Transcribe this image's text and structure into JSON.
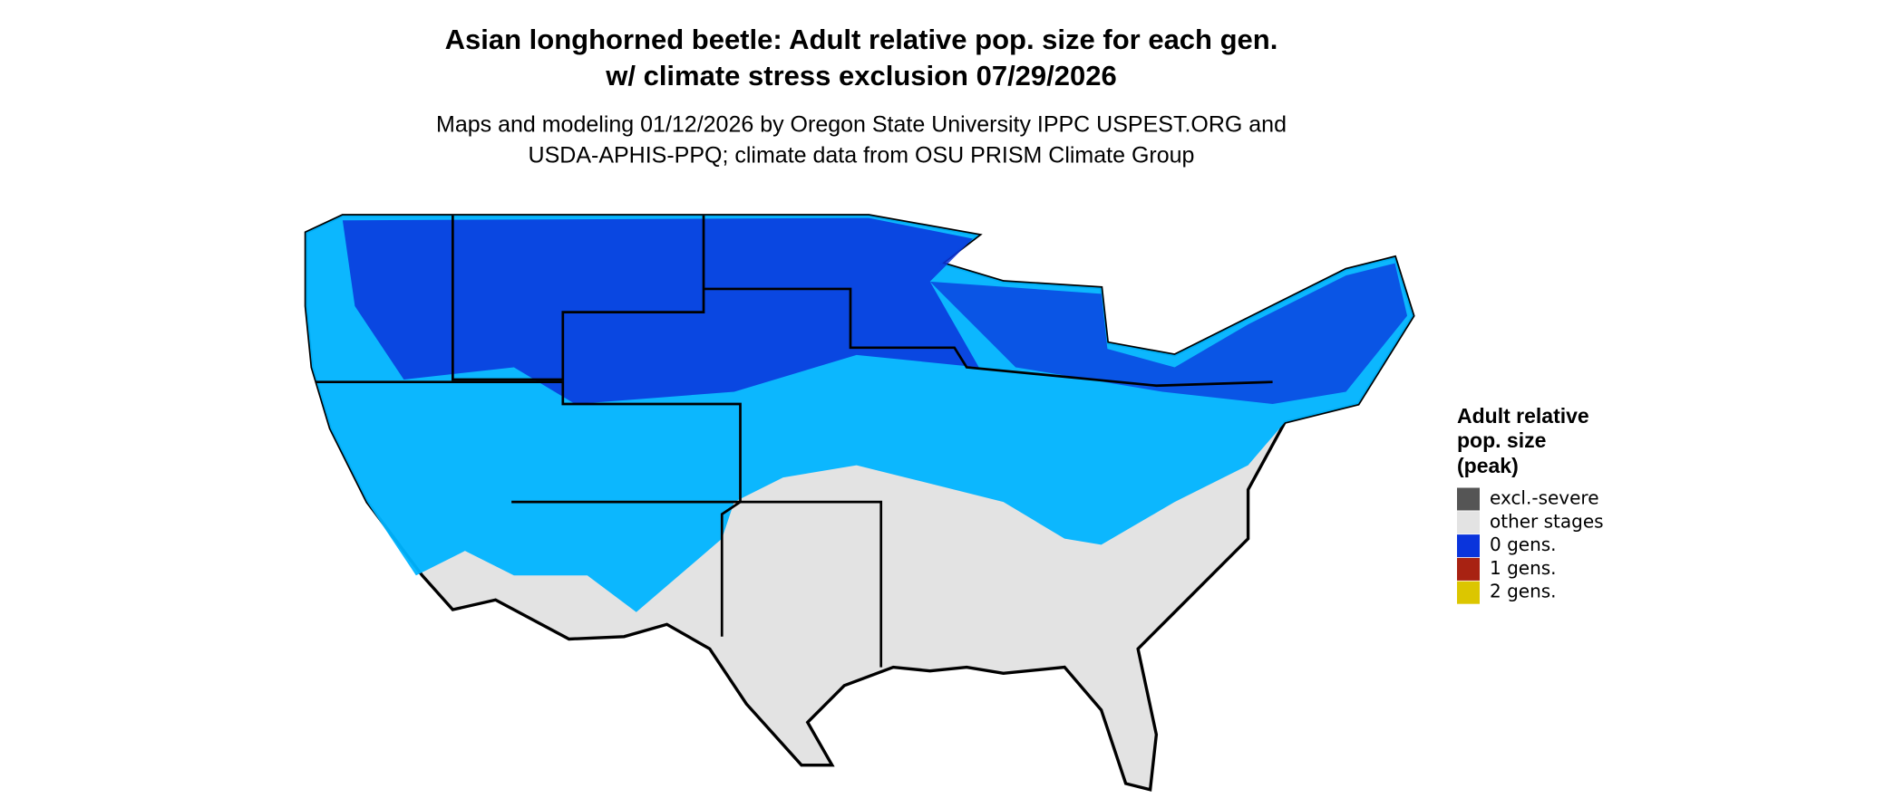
{
  "title": [
    "Asian longhorned beetle: Adult relative pop. size for each gen.",
    "w/ climate stress exclusion 07/29/2026"
  ],
  "subtitle": [
    "Maps and modeling 01/12/2026 by Oregon State University IPPC USPEST.ORG and",
    "USDA-APHIS-PPQ; climate data from OSU PRISM Climate Group"
  ],
  "legend": {
    "title": [
      "Adult relative",
      "pop. size",
      "(peak)"
    ],
    "items": [
      {
        "label": "excl.-severe",
        "color": "#555555"
      },
      {
        "label": "other stages",
        "color": "#e3e3e3"
      },
      {
        "label": "0 gens.",
        "color": "#0a34dc"
      },
      {
        "label": "1 gens.",
        "color": "#a82212"
      },
      {
        "label": "2 gens.",
        "color": "#dcc600"
      }
    ]
  }
}
